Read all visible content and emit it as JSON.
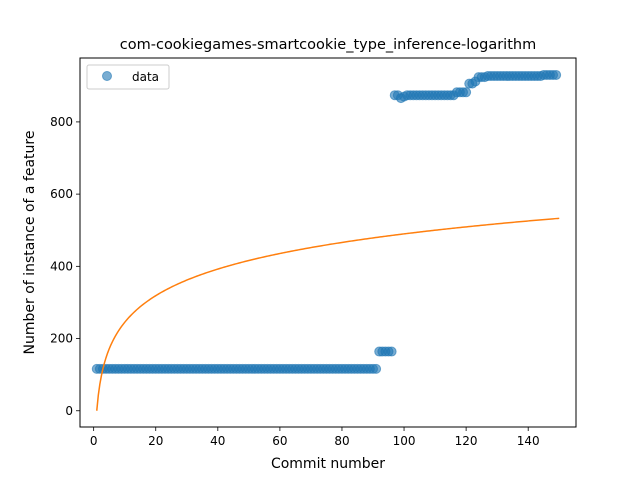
{
  "chart_data": {
    "type": "scatter",
    "title": "com-cookiegames-smartcookie_type_inference-logarithm",
    "xlabel": "Commit number",
    "ylabel": "Number of instance of a feature",
    "xlim": [
      -4.4,
      155.4
    ],
    "ylim": [
      -45,
      977
    ],
    "xticks": [
      0,
      20,
      40,
      60,
      80,
      100,
      120,
      140
    ],
    "yticks": [
      0,
      200,
      400,
      600,
      800
    ],
    "legend": {
      "position": "top-left",
      "entries": [
        "data"
      ]
    },
    "grid": false,
    "series": [
      {
        "name": "data",
        "kind": "scatter",
        "color": "#1f77b4",
        "segments": [
          {
            "x_start": 1,
            "x_end": 91,
            "y": 116
          },
          {
            "x_start": 92,
            "x_end": 96,
            "y": 164
          },
          {
            "x_start": 97,
            "x_end": 98,
            "y": 874
          },
          {
            "x_start": 99,
            "x_end": 99,
            "y": 866
          },
          {
            "x_start": 100,
            "x_end": 100,
            "y": 870
          },
          {
            "x_start": 101,
            "x_end": 116,
            "y": 874
          },
          {
            "x_start": 117,
            "x_end": 120,
            "y": 882
          },
          {
            "x_start": 121,
            "x_end": 122,
            "y": 906
          },
          {
            "x_start": 123,
            "x_end": 123,
            "y": 912
          },
          {
            "x_start": 124,
            "x_end": 126,
            "y": 924
          },
          {
            "x_start": 127,
            "x_end": 144,
            "y": 927
          },
          {
            "x_start": 145,
            "x_end": 149,
            "y": 930
          }
        ]
      },
      {
        "name": "",
        "kind": "line",
        "color": "#ff7f0e",
        "model": "logarithmic",
        "x_start": 1,
        "x_end": 150,
        "y_at_start": 0,
        "y_at_end": 533
      }
    ]
  }
}
